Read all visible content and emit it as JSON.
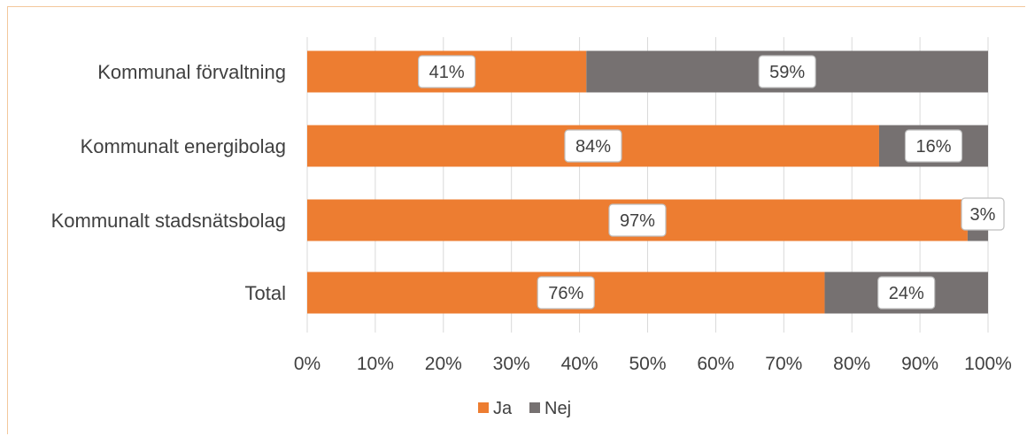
{
  "chart_data": {
    "type": "bar",
    "orientation": "horizontal",
    "stacked": true,
    "categories": [
      "Kommunal förvaltning",
      "Kommunalt energibolag",
      "Kommunalt stadsnätsbolag",
      "Total"
    ],
    "series": [
      {
        "name": "Ja",
        "values": [
          41,
          84,
          97,
          76
        ],
        "labels": [
          "41%",
          "84%",
          "97%",
          "76%"
        ],
        "color": "#ed7d31"
      },
      {
        "name": "Nej",
        "values": [
          59,
          16,
          3,
          24
        ],
        "labels": [
          "59%",
          "16%",
          "3%",
          "24%"
        ],
        "color": "#767171"
      }
    ],
    "xticks": [
      "0%",
      "10%",
      "20%",
      "30%",
      "40%",
      "50%",
      "60%",
      "70%",
      "80%",
      "90%",
      "100%"
    ],
    "xlim": [
      0,
      100
    ],
    "grid": true,
    "legend_position": "bottom"
  }
}
